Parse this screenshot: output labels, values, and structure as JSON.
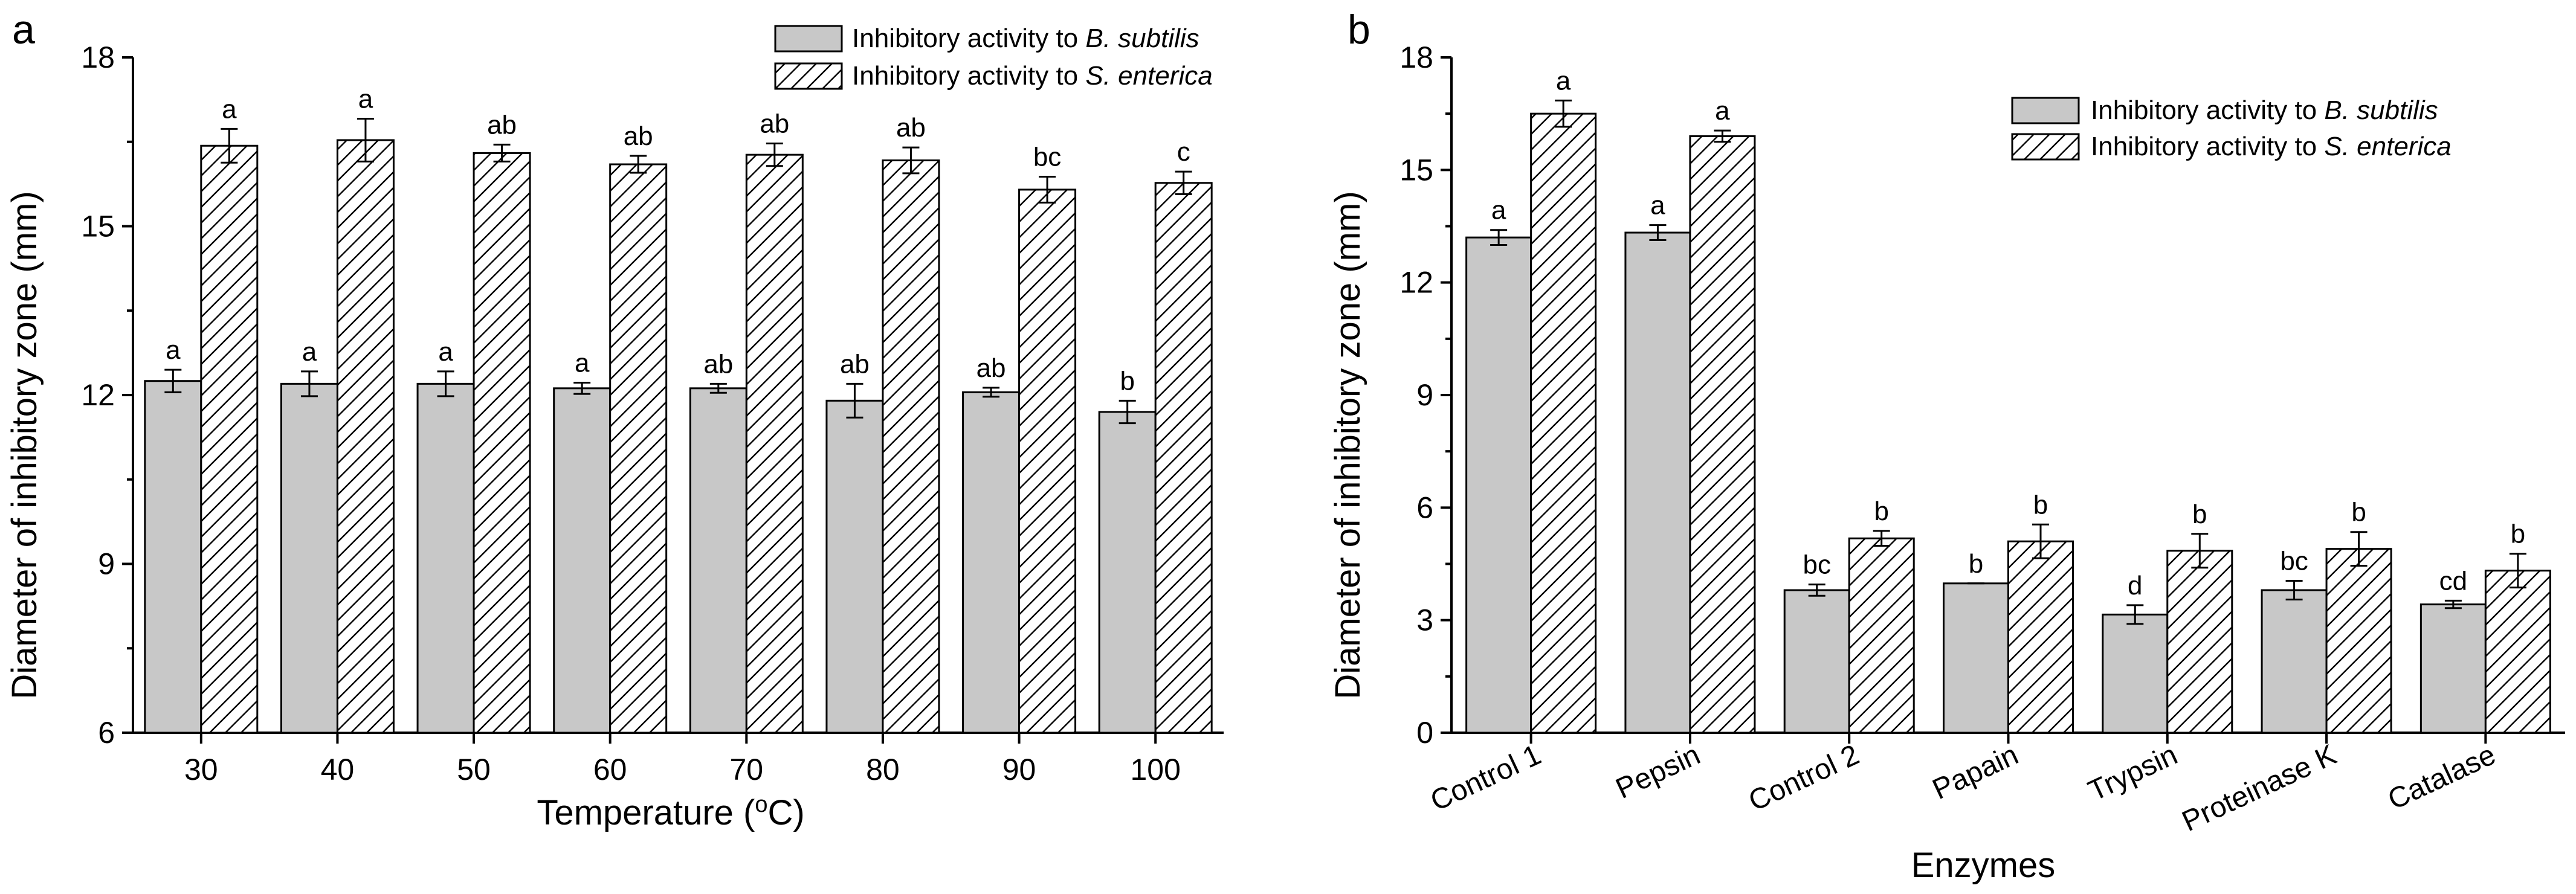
{
  "colors": {
    "solid_bar": "#c8c8c8",
    "stroke": "#000000",
    "background": "#ffffff"
  },
  "chart_data": [
    {
      "panel": "a",
      "type": "bar",
      "xlabel_main": "Temperature (",
      "xlabel_sup": "o",
      "xlabel_end": "C)",
      "ylabel": "Diameter of inhibitory zone (mm)",
      "ylim": [
        6,
        18
      ],
      "yticks": [
        6,
        9,
        12,
        15,
        18
      ],
      "categories": [
        "30",
        "40",
        "50",
        "60",
        "70",
        "80",
        "90",
        "100"
      ],
      "legend_position": "top-right",
      "series": [
        {
          "name_prefix": "Inhibitory activity to ",
          "name_italic": "B. subtilis",
          "style": "solid",
          "values": [
            12.25,
            12.2,
            12.2,
            12.12,
            12.12,
            11.9,
            12.05,
            11.7
          ],
          "errors": [
            0.2,
            0.22,
            0.22,
            0.1,
            0.08,
            0.3,
            0.08,
            0.2
          ],
          "labels": [
            "a",
            "a",
            "a",
            "a",
            "ab",
            "ab",
            "ab",
            "b"
          ]
        },
        {
          "name_prefix": "Inhibitory activity to ",
          "name_italic": "S. enterica",
          "style": "hatched",
          "values": [
            16.43,
            16.53,
            16.3,
            16.1,
            16.27,
            16.17,
            15.65,
            15.77
          ],
          "errors": [
            0.3,
            0.38,
            0.15,
            0.15,
            0.2,
            0.23,
            0.23,
            0.2
          ],
          "labels": [
            "a",
            "a",
            "ab",
            "ab",
            "ab",
            "ab",
            "bc",
            "c"
          ]
        }
      ]
    },
    {
      "panel": "b",
      "type": "bar",
      "xlabel": "Enzymes",
      "ylabel": "Diameter of inhibitory zone (mm)",
      "ylim": [
        0,
        18
      ],
      "yticks": [
        0,
        3,
        6,
        9,
        12,
        15,
        18
      ],
      "categories": [
        "Control 1",
        "Pepsin",
        "Control 2",
        "Papain",
        "Trypsin",
        "Proteinase K",
        "Catalase"
      ],
      "legend_position": "top-right",
      "series": [
        {
          "name_prefix": "Inhibitory activity to ",
          "name_italic": "B. subtilis",
          "style": "solid",
          "values": [
            13.2,
            13.33,
            3.8,
            3.98,
            3.15,
            3.8,
            3.42
          ],
          "errors": [
            0.2,
            0.2,
            0.15,
            0.0,
            0.25,
            0.25,
            0.1
          ],
          "labels": [
            "a",
            "a",
            "bc",
            "b",
            "d",
            "bc",
            "cd"
          ]
        },
        {
          "name_prefix": "Inhibitory activity to ",
          "name_italic": "S. enterica",
          "style": "hatched",
          "values": [
            16.5,
            15.9,
            5.18,
            5.1,
            4.85,
            4.9,
            4.32
          ],
          "errors": [
            0.35,
            0.15,
            0.2,
            0.45,
            0.45,
            0.45,
            0.45
          ],
          "labels": [
            "a",
            "a",
            "b",
            "b",
            "b",
            "b",
            "b"
          ]
        }
      ]
    }
  ]
}
